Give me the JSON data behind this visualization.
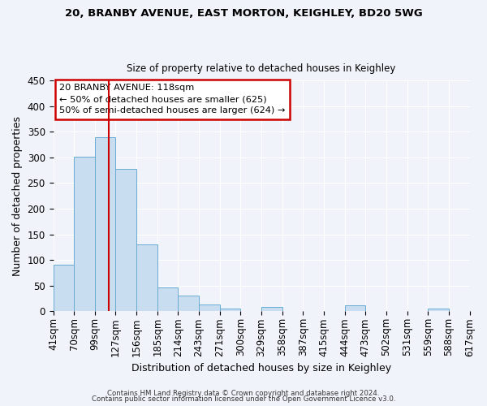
{
  "title1": "20, BRANBY AVENUE, EAST MORTON, KEIGHLEY, BD20 5WG",
  "title2": "Size of property relative to detached houses in Keighley",
  "xlabel": "Distribution of detached houses by size in Keighley",
  "ylabel": "Number of detached properties",
  "bin_labels": [
    "41sqm",
    "70sqm",
    "99sqm",
    "127sqm",
    "156sqm",
    "185sqm",
    "214sqm",
    "243sqm",
    "271sqm",
    "300sqm",
    "329sqm",
    "358sqm",
    "387sqm",
    "415sqm",
    "444sqm",
    "473sqm",
    "502sqm",
    "531sqm",
    "559sqm",
    "588sqm",
    "617sqm"
  ],
  "bar_values": [
    91,
    302,
    340,
    277,
    131,
    46,
    31,
    13,
    5,
    0,
    9,
    0,
    0,
    0,
    11,
    0,
    0,
    0,
    5,
    0
  ],
  "bar_color": "#c9ddf0",
  "bar_edge_color": "#6aabd2",
  "vline_x": 118,
  "vline_color": "#cc0000",
  "bin_edges": [
    41,
    70,
    99,
    127,
    156,
    185,
    214,
    243,
    271,
    300,
    329,
    358,
    387,
    415,
    444,
    473,
    502,
    531,
    559,
    588,
    617
  ],
  "ylim": [
    0,
    450
  ],
  "yticks": [
    0,
    50,
    100,
    150,
    200,
    250,
    300,
    350,
    400,
    450
  ],
  "annotation_line1": "20 BRANBY AVENUE: 118sqm",
  "annotation_line2": "← 50% of detached houses are smaller (625)",
  "annotation_line3": "50% of semi-detached houses are larger (624) →",
  "footer1": "Contains HM Land Registry data © Crown copyright and database right 2024.",
  "footer2": "Contains public sector information licensed under the Open Government Licence v3.0.",
  "bg_color": "#f0f4fa",
  "plot_bg_color": "#f0f4fa",
  "grid_color": "#ffffff",
  "annotation_box_color": "#cc0000",
  "annotation_bg": "white"
}
